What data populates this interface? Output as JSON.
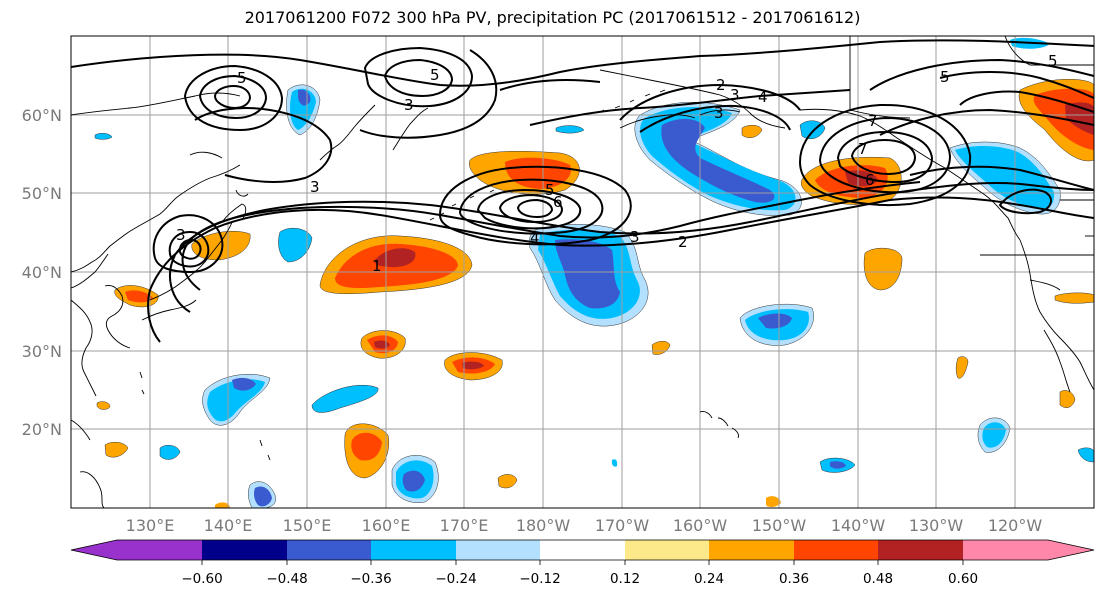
{
  "title": "2017061200 F072 300 hPa PV, precipitation PC (2017061512 - 2017061612)",
  "map": {
    "lon_labels": [
      "130°E",
      "140°E",
      "150°E",
      "160°E",
      "170°E",
      "180°W",
      "170°W",
      "160°W",
      "150°W",
      "140°W",
      "130°W",
      "120°W"
    ],
    "lat_labels": [
      "60°N",
      "50°N",
      "40°N",
      "30°N",
      "20°N"
    ],
    "contour_labels": [
      "1",
      "2",
      "3",
      "4",
      "5",
      "6",
      "7",
      "5",
      "3",
      "3",
      "2",
      "3",
      "4",
      "5",
      "5",
      "6",
      "7",
      "5",
      "3",
      "3"
    ]
  },
  "colorbar": {
    "colors": [
      "#9932cc",
      "#00008b",
      "#3a5bcf",
      "#00bfff",
      "#b3e0ff",
      "#ffffff",
      "#fde98a",
      "#ffa500",
      "#ff4500",
      "#b22222",
      "#ff88aa"
    ],
    "tick_labels": [
      "−0.60",
      "−0.48",
      "−0.36",
      "−0.24",
      "−0.12",
      "0.12",
      "0.24",
      "0.36",
      "0.48",
      "0.60"
    ]
  }
}
